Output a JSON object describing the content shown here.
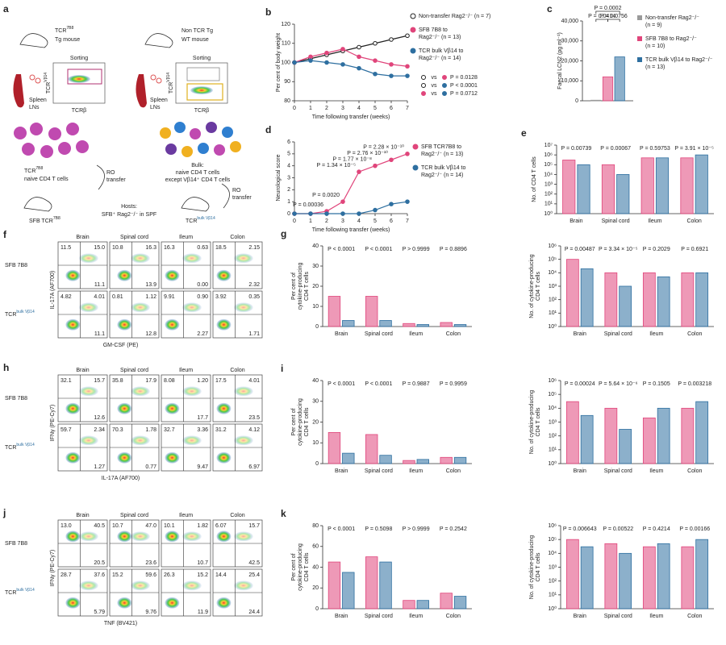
{
  "diagram": {
    "panel": "a",
    "left": {
      "mouse": {
        "text": "TCR",
        "sup": "7B8"
      },
      "mouse2": "Tg mouse",
      "tissue": [
        "Spleen",
        "LNs"
      ],
      "sorting": "Sorting",
      "xaxis": "TCRβ",
      "yaxis": {
        "text": "TCR",
        "sup": "Vβ14"
      },
      "cells": {
        "text": "TCR",
        "sup": "7B8"
      },
      "cells2": "naive CD4 T cells",
      "transfer": [
        "RO",
        "transfer"
      ],
      "recipient": {
        "text": "SFB TCR",
        "sup": "7B8"
      }
    },
    "right": {
      "mouse": "Non TCR Tg",
      "mouse2": "WT mouse",
      "tissue": [
        "Spleen",
        "LNs"
      ],
      "sorting": "Sorting",
      "xaxis": "TCRβ",
      "yaxis": {
        "text": "TCR",
        "sup": "Vβ14"
      },
      "cells": [
        "Bulk:",
        "naive CD4 T cells",
        "except Vβ14⁺ CD4 T cells"
      ],
      "transfer": [
        "RO",
        "transfer"
      ],
      "recipient": {
        "text": "TCR",
        "sup": "bulk Vβ14"
      }
    },
    "hosts": [
      "Hosts:",
      "SFB⁺ Rag2⁻/⁻ in SPF"
    ]
  },
  "chart_data": [
    {
      "type": "line",
      "panel": "b",
      "ylabel": [
        "Per cent of body weight"
      ],
      "xlabel": "Time following transfer (weeks)",
      "x": [
        0,
        1,
        2,
        3,
        4,
        5,
        6,
        7
      ],
      "xlim": [
        0,
        7
      ],
      "xticks": [
        0,
        1,
        2,
        3,
        4,
        5,
        6,
        7
      ],
      "ylim": [
        80,
        120
      ],
      "yticks": [
        80,
        90,
        100,
        110,
        120
      ],
      "series": [
        {
          "name": [
            "Non-transfer Rag2⁻/⁻ (n = 7)"
          ],
          "color": "#222222",
          "marker": "open",
          "values": [
            100,
            102,
            104,
            106,
            108,
            110,
            112,
            114
          ]
        },
        {
          "name": [
            "SFB 7B8 to",
            "Rag2⁻/⁻ (n = 13)"
          ],
          "color": "#e0457b",
          "marker": "filled",
          "values": [
            100,
            103,
            105,
            107,
            103,
            101,
            99,
            98
          ]
        },
        {
          "name": [
            "TCR bulk Vβ14 to",
            "Rag2⁻/⁻ (n = 14)"
          ],
          "color": "#2e6fa0",
          "marker": "filled",
          "values": [
            100,
            101,
            100,
            99,
            97,
            94,
            93,
            93
          ]
        }
      ],
      "comparisons": [
        {
          "text": "vs",
          "p": "P = 0.0128"
        },
        {
          "text": "vs",
          "p": "P < 0.0001"
        },
        {
          "text": "vs",
          "p": "P = 0.0712"
        }
      ]
    },
    {
      "type": "bar",
      "panel": "c",
      "ylabel": [
        "Faecal LCN2 (pg ml⁻¹)"
      ],
      "ylim": [
        0,
        40000
      ],
      "yticks": [
        0,
        {
          "value": 10000,
          "label": "10,000"
        },
        {
          "value": 20000,
          "label": "20,000"
        },
        {
          "value": 30000,
          "label": "30,000"
        },
        {
          "value": 40000,
          "label": "40,000"
        }
      ],
      "series": [
        {
          "name": [
            "Non-transfer Rag2⁻/⁻",
            "(n = 9)"
          ],
          "color": "#9a9a9a",
          "values": [
            300
          ]
        },
        {
          "name": [
            "SFB 7B8 to Rag2⁻/⁻",
            "(n = 10)"
          ],
          "color": "#e0457b",
          "values": [
            12000
          ]
        },
        {
          "name": [
            "TCR bulk Vβ14 to Rag2⁻/⁻",
            "(n = 13)"
          ],
          "color": "#2e6fa0",
          "values": [
            22000
          ]
        }
      ],
      "pvalues": [
        "P = 0.0002",
        "P = 0.0414",
        "P = 0.0756"
      ]
    },
    {
      "type": "line",
      "panel": "d",
      "ylabel": [
        "Neurological score"
      ],
      "xlabel": "Time following transfer (weeks)",
      "x": [
        0,
        1,
        2,
        3,
        4,
        5,
        6,
        7
      ],
      "xlim": [
        0,
        7
      ],
      "xticks": [
        0,
        1,
        2,
        3,
        4,
        5,
        6,
        7
      ],
      "ylim": [
        0,
        6
      ],
      "yticks": [
        0,
        1,
        2,
        3,
        4,
        5,
        6
      ],
      "series": [
        {
          "name": [
            "SFB TCR7B8 to",
            "Rag2⁻/⁻ (n = 13)"
          ],
          "color": "#e0457b",
          "marker": "filled",
          "values": [
            0,
            0,
            0.2,
            1,
            3.5,
            4,
            4.5,
            5
          ]
        },
        {
          "name": [
            "TCR bulk Vβ14 to",
            "Rag2⁻/⁻ (n = 14)"
          ],
          "color": "#2e6fa0",
          "marker": "filled",
          "values": [
            0,
            0,
            0,
            0,
            0,
            0.3,
            0.8,
            1
          ]
        }
      ],
      "pvalues": [
        "P = 0.00036",
        "P = 0.0020",
        "P = 1.34 × 10⁻⁵",
        "P = 1.77 × 10⁻⁸",
        "P = 2.76 × 10⁻¹⁰",
        "P = 2.28 × 10⁻¹⁰"
      ]
    },
    {
      "type": "bar",
      "panel": "e",
      "log": true,
      "ylabel": [
        "No. of CD4 T cells"
      ],
      "categories": [
        "Brain",
        "Spinal cord",
        "Ileum",
        "Colon"
      ],
      "ylim": [
        1,
        10000000
      ],
      "yticks": [
        {
          "value": 1,
          "label": "10⁰"
        },
        {
          "value": 10,
          "label": "10¹"
        },
        {
          "value": 100,
          "label": "10²"
        },
        {
          "value": 1000,
          "label": "10³"
        },
        {
          "value": 10000,
          "label": "10⁴"
        },
        {
          "value": 100000,
          "label": "10⁵"
        },
        {
          "value": 1000000,
          "label": "10⁶"
        },
        {
          "value": 10000000,
          "label": "10⁷"
        }
      ],
      "series": [
        {
          "color": "#e0457b",
          "values": [
            300000,
            100000,
            500000,
            500000
          ]
        },
        {
          "color": "#2e6fa0",
          "values": [
            100000,
            10000,
            500000,
            1000000
          ]
        }
      ],
      "pvalues": [
        "P = 0.00739",
        "P = 0.00067",
        "P = 0.59753",
        "P = 3.91 × 10⁻⁵"
      ]
    },
    {
      "type": "bar",
      "panel": "g",
      "ylabel": [
        "Per cent of",
        "cytokine-producing",
        "CD4 T cells"
      ],
      "categories": [
        "Brain",
        "Spinal cord",
        "Ileum",
        "Colon"
      ],
      "ylim": [
        0,
        40
      ],
      "yticks": [
        0,
        10,
        20,
        30,
        40
      ],
      "series": [
        {
          "color": "#e0457b",
          "values": [
            15,
            15,
            1.5,
            2
          ]
        },
        {
          "color": "#2e6fa0",
          "values": [
            3,
            3,
            1,
            1
          ]
        }
      ],
      "pvalues": [
        "P < 0.0001",
        "P < 0.0001",
        "P > 0.9999",
        "P = 0.8896"
      ]
    },
    {
      "type": "bar",
      "log": true,
      "ylabel": [
        "No. of cytokine-producing",
        "CD4 T cells"
      ],
      "categories": [
        "Brain",
        "Spinal cord",
        "Ileum",
        "Colon"
      ],
      "ylim": [
        1,
        1000000
      ],
      "yticks": [
        {
          "value": 1,
          "label": "10⁰"
        },
        {
          "value": 10,
          "label": "10¹"
        },
        {
          "value": 100,
          "label": "10²"
        },
        {
          "value": 1000,
          "label": "10³"
        },
        {
          "value": 10000,
          "label": "10⁴"
        },
        {
          "value": 100000,
          "label": "10⁵"
        },
        {
          "value": 1000000,
          "label": "10⁶"
        }
      ],
      "series": [
        {
          "color": "#e0457b",
          "values": [
            100000,
            10000,
            10000,
            10000
          ]
        },
        {
          "color": "#2e6fa0",
          "values": [
            20000,
            1000,
            5000,
            10000
          ]
        }
      ],
      "pvalues": [
        "P = 0.00487",
        "P = 3.34 × 10⁻⁵",
        "P = 0.2029",
        "P = 0.6921"
      ]
    },
    {
      "type": "bar",
      "panel": "i",
      "ylabel": [
        "Per cent of",
        "cytokine-producing",
        "CD4 T cells"
      ],
      "categories": [
        "Brain",
        "Spinal cord",
        "Ileum",
        "Colon"
      ],
      "ylim": [
        0,
        40
      ],
      "yticks": [
        0,
        10,
        20,
        30,
        40
      ],
      "series": [
        {
          "color": "#e0457b",
          "values": [
            15,
            14,
            1.5,
            3
          ]
        },
        {
          "color": "#2e6fa0",
          "values": [
            5,
            4,
            2,
            3
          ]
        }
      ],
      "pvalues": [
        "P < 0.0001",
        "P < 0.0001",
        "P = 0.9887",
        "P = 0.9959"
      ]
    },
    {
      "type": "bar",
      "log": true,
      "ylabel": [
        "No. of cytokine-producing",
        "CD4 T cells"
      ],
      "categories": [
        "Brain",
        "Spinal cord",
        "Ileum",
        "Colon"
      ],
      "ylim": [
        1,
        1000000
      ],
      "yticks": [
        {
          "value": 1,
          "label": "10⁰"
        },
        {
          "value": 10,
          "label": "10¹"
        },
        {
          "value": 100,
          "label": "10²"
        },
        {
          "value": 1000,
          "label": "10³"
        },
        {
          "value": 10000,
          "label": "10⁴"
        },
        {
          "value": 100000,
          "label": "10⁵"
        },
        {
          "value": 1000000,
          "label": "10⁶"
        }
      ],
      "series": [
        {
          "color": "#e0457b",
          "values": [
            30000,
            10000,
            2000,
            10000
          ]
        },
        {
          "color": "#2e6fa0",
          "values": [
            3000,
            300,
            10000,
            30000
          ]
        }
      ],
      "pvalues": [
        "P = 0.00024",
        "P = 5.64 × 10⁻⁶",
        "P = 0.1505",
        "P = 0.003218"
      ]
    },
    {
      "type": "bar",
      "panel": "k",
      "ylabel": [
        "Per cent of",
        "cytokine-producing",
        "CD4 T cells"
      ],
      "categories": [
        "Brain",
        "Spinal cord",
        "Ileum",
        "Colon"
      ],
      "ylim": [
        0,
        80
      ],
      "yticks": [
        0,
        20,
        40,
        60,
        80
      ],
      "series": [
        {
          "color": "#e0457b",
          "values": [
            45,
            50,
            8,
            15
          ]
        },
        {
          "color": "#2e6fa0",
          "values": [
            35,
            45,
            8,
            12
          ]
        }
      ],
      "pvalues": [
        "P < 0.0001",
        "P = 0.5098",
        "P > 0.9999",
        "P = 0.2542"
      ]
    },
    {
      "type": "bar",
      "log": true,
      "ylabel": [
        "No. of cytokine-producing",
        "CD4 T cells"
      ],
      "categories": [
        "Brain",
        "Spinal cord",
        "Ileum",
        "Colon"
      ],
      "ylim": [
        1,
        1000000
      ],
      "yticks": [
        {
          "value": 1,
          "label": "10⁰"
        },
        {
          "value": 10,
          "label": "10¹"
        },
        {
          "value": 100,
          "label": "10²"
        },
        {
          "value": 1000,
          "label": "10³"
        },
        {
          "value": 10000,
          "label": "10⁴"
        },
        {
          "value": 100000,
          "label": "10⁵"
        },
        {
          "value": 1000000,
          "label": "10⁶"
        }
      ],
      "series": [
        {
          "color": "#e0457b",
          "values": [
            100000,
            50000,
            30000,
            30000
          ]
        },
        {
          "color": "#2e6fa0",
          "values": [
            30000,
            10000,
            50000,
            100000
          ]
        }
      ],
      "pvalues": [
        "P = 0.006643",
        "P = 0.00522",
        "P = 0.4214",
        "P = 0.00166"
      ]
    }
  ],
  "flow": [
    {
      "panel": "f",
      "columns": [
        "Brain",
        "Spinal cord",
        "Ileum",
        "Colon"
      ],
      "rows": [
        {
          "text": "SFB 7B8",
          "sup": ""
        },
        {
          "text": "TCR",
          "sup": "bulk Vβ14"
        }
      ],
      "xlabel": "GM-CSF (PE)",
      "ylabel": "IL-17A (AF700)",
      "values": [
        [
          [
            "11.5",
            "15.0",
            "11.1"
          ],
          [
            "10.8",
            "16.3",
            "13.9"
          ],
          [
            "16.3",
            "0.63",
            "0.00"
          ],
          [
            "18.5",
            "2.15",
            "2.32"
          ]
        ],
        [
          [
            "4.82",
            "4.01",
            "11.1"
          ],
          [
            "0.81",
            "1.12",
            "12.8"
          ],
          [
            "9.91",
            "0.90",
            "2.27"
          ],
          [
            "3.92",
            "0.35",
            "1.71"
          ]
        ]
      ]
    },
    {
      "panel": "h",
      "columns": [
        "Brain",
        "Spinal cord",
        "Ileum",
        "Colon"
      ],
      "rows": [
        {
          "text": "SFB 7B8",
          "sup": ""
        },
        {
          "text": "TCR",
          "sup": "bulk Vβ14"
        }
      ],
      "xlabel": "IL-17A (AF700)",
      "ylabel": "IFNγ (PE-Cy7)",
      "values": [
        [
          [
            "32.1",
            "15.7",
            "12.6"
          ],
          [
            "35.8",
            "17.9"
          ],
          [
            "8.08",
            "1.20",
            "17.7"
          ],
          [
            "17.5",
            "4.01",
            "23.5"
          ]
        ],
        [
          [
            "59.7",
            "2.34",
            "1.27"
          ],
          [
            "70.3",
            "1.78",
            "0.77"
          ],
          [
            "32.7",
            "3.36",
            "9.47"
          ],
          [
            "31.2",
            "4.12",
            "6.97"
          ]
        ]
      ]
    },
    {
      "panel": "j",
      "columns": [
        "Brain",
        "Spinal cord",
        "Ileum",
        "Colon"
      ],
      "rows": [
        {
          "text": "SFB 7B8",
          "sup": ""
        },
        {
          "text": "TCR",
          "sup": "bulk Vβ14"
        }
      ],
      "xlabel": "TNF (BV421)",
      "ylabel": "IFNγ (PE-Cy7)",
      "values": [
        [
          [
            "13.0",
            "40.5",
            "20.5"
          ],
          [
            "10.7",
            "47.0",
            "23.6"
          ],
          [
            "10.1",
            "1.82",
            "10.7"
          ],
          [
            "6.07",
            "15.7",
            "42.5"
          ]
        ],
        [
          [
            "28.7",
            "37.6",
            "5.79"
          ],
          [
            "15.2",
            "59.6",
            "9.76"
          ],
          [
            "26.3",
            "15.2",
            "11.9"
          ],
          [
            "14.4",
            "25.4",
            "24.4"
          ]
        ]
      ]
    }
  ]
}
